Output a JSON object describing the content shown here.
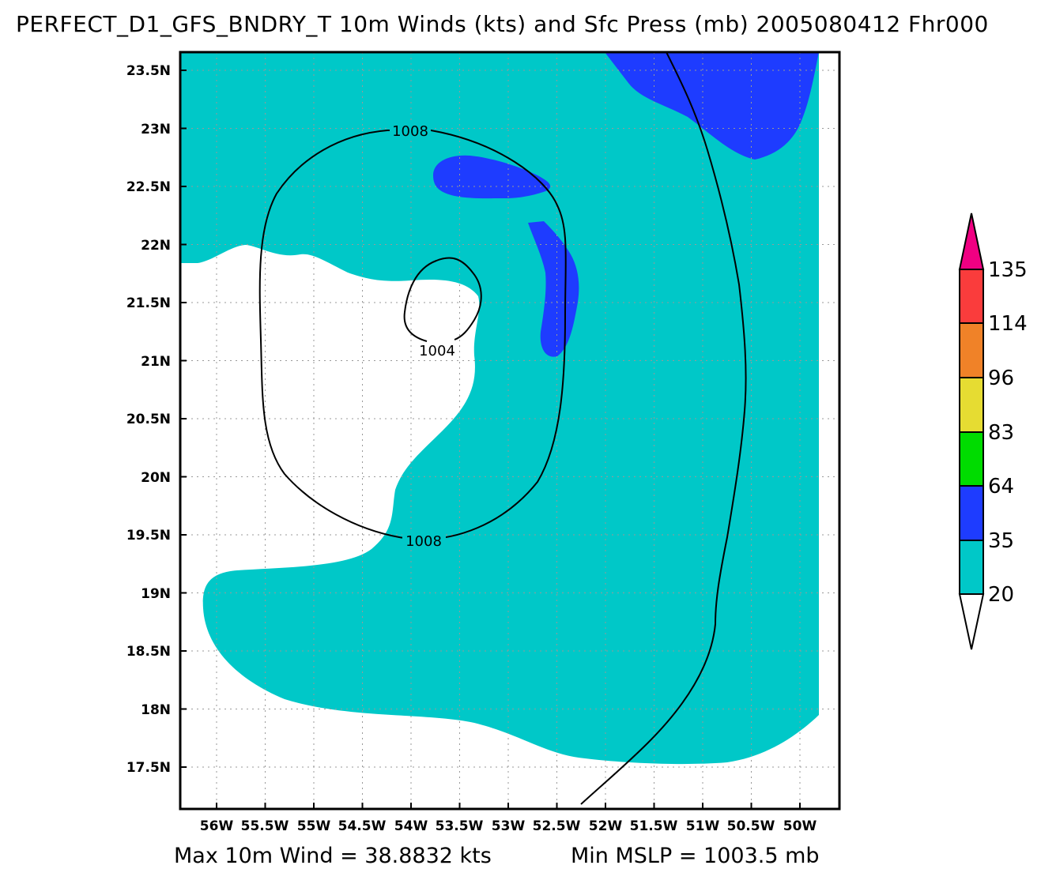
{
  "title": "PERFECT_D1_GFS_BNDRY_T 10m Winds (kts) and Sfc Press (mb) 2005080412 Fhr000",
  "footer": {
    "max_wind": "Max 10m Wind = 38.8832 kts",
    "min_mslp": "Min MSLP = 1003.5 mb"
  },
  "axes": {
    "lon_ticks": [
      "56W",
      "55.5W",
      "55W",
      "54.5W",
      "54W",
      "53.5W",
      "53W",
      "52.5W",
      "52W",
      "51.5W",
      "51W",
      "50.5W",
      "50W"
    ],
    "lat_ticks": [
      "23.5N",
      "23N",
      "22.5N",
      "22N",
      "21.5N",
      "21N",
      "20.5N",
      "20N",
      "19.5N",
      "19N",
      "18.5N",
      "18N",
      "17.5N"
    ]
  },
  "contours": {
    "labels": [
      "1008",
      "1004",
      "1008"
    ]
  },
  "colorbar": {
    "levels": [
      "20",
      "35",
      "64",
      "83",
      "96",
      "114",
      "135"
    ],
    "colors": [
      "#00c8c8",
      "#1e3cff",
      "#00dc00",
      "#e6dc32",
      "#f08228",
      "#fa3c3c",
      "#f00082"
    ]
  },
  "colors": {
    "light_shade": "#00c8c8",
    "dark_shade": "#1e3cff",
    "background": "#ffffff"
  }
}
